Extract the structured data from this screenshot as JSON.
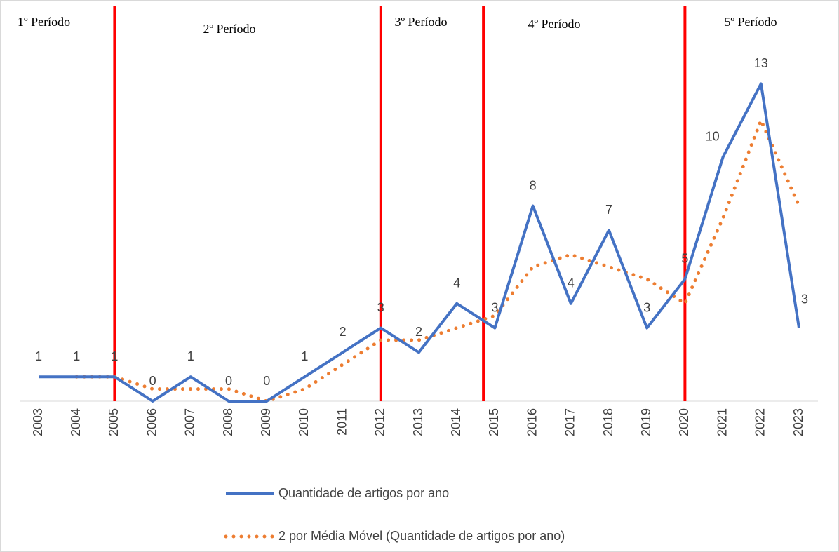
{
  "chart_data": {
    "type": "line",
    "categories": [
      "2003",
      "2004",
      "2005",
      "2006",
      "2007",
      "2008",
      "2009",
      "2010",
      "2011",
      "2012",
      "2013",
      "2014",
      "2015",
      "2016",
      "2017",
      "2018",
      "2019",
      "2020",
      "2021",
      "2022",
      "2023"
    ],
    "series": [
      {
        "name": "Quantidade de artigos por ano",
        "color": "#4472c4",
        "style": "solid",
        "data_labels": true,
        "values": [
          1,
          1,
          1,
          0,
          1,
          0,
          0,
          1,
          2,
          3,
          2,
          4,
          3,
          8,
          4,
          7,
          3,
          5,
          10,
          13,
          3
        ]
      },
      {
        "name": "2 por Média Móvel (Quantidade de artigos por ano)",
        "color": "#ed7d31",
        "style": "dotted",
        "data_labels": false,
        "values": [
          null,
          1,
          1,
          0.5,
          0.5,
          0.5,
          0,
          0.5,
          1.5,
          2.5,
          2.5,
          3,
          3.5,
          5.5,
          6,
          5.5,
          5,
          4,
          7.5,
          11.5,
          8
        ]
      }
    ],
    "ylim": [
      0,
      16
    ],
    "periods": [
      {
        "label": "1º Período"
      },
      {
        "label": "2º Período"
      },
      {
        "label": "3º Período"
      },
      {
        "label": "4º Período"
      },
      {
        "label": "5º Período"
      }
    ],
    "period_lines": [
      2005,
      2012,
      2014.7,
      2020
    ],
    "period_line_color": "#ff0000",
    "legend": "bottom"
  }
}
